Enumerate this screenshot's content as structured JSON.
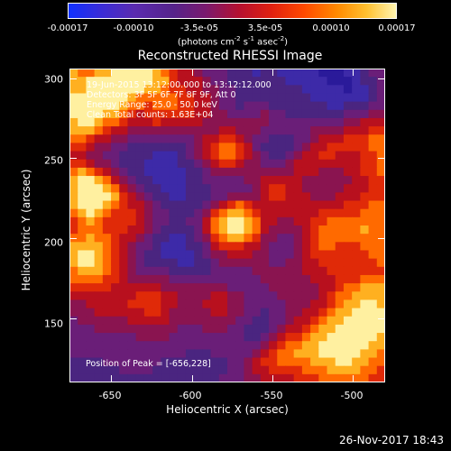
{
  "colorbar": {
    "ticks": [
      "-0.00017",
      "-0.00010",
      "-3.5e-05",
      "3.5e-05",
      "0.00010",
      "0.00017"
    ],
    "units_main": "(photons cm",
    "units_exp1": "-2",
    "units_mid": " s",
    "units_exp2": "-1",
    "units_mid2": " asec",
    "units_exp3": "-2",
    "units_end": ")"
  },
  "title": "Reconstructed RHESSI Image",
  "annotations": {
    "time": "19-Jun-2015 13:12:00.000 to 13:12:12.000",
    "detectors": "Detectors: 3F 5F 6F 7F 8F 9F, Att 0",
    "energy": "Energy Range: 25.0 - 50.0 keV",
    "clean": "Clean     Total counts: 1.63E+04",
    "peak": "Position of Peak = [-656,228]"
  },
  "axes": {
    "xlabel": "Heliocentric X (arcsec)",
    "ylabel": "Heliocentric Y (arcsec)",
    "xticks": [
      "-650",
      "-600",
      "-550",
      "-500"
    ],
    "yticks": [
      "300",
      "250",
      "200",
      "150"
    ]
  },
  "timestamp": "26-Nov-2017 18:43",
  "chart_data": {
    "type": "heatmap",
    "title": "Reconstructed RHESSI Image",
    "xlabel": "Heliocentric X (arcsec)",
    "ylabel": "Heliocentric Y (arcsec)",
    "xlim": [
      -676,
      -480
    ],
    "ylim": [
      110,
      306
    ],
    "xticks": [
      -650,
      -600,
      -550,
      -500
    ],
    "yticks": [
      150,
      200,
      250,
      300
    ],
    "colorbar": {
      "min": -0.00017,
      "max": 0.00017,
      "ticks": [
        -0.00017,
        -0.0001,
        -3.5e-05,
        3.5e-05,
        0.0001,
        0.00017
      ]
    },
    "peak_position": [
      -656,
      228
    ],
    "grid_size": [
      38,
      38
    ],
    "values": [
      [
        8,
        7,
        7,
        8,
        8,
        9,
        9,
        9,
        9,
        9,
        8,
        7,
        6,
        5,
        5,
        4,
        3,
        3,
        3,
        2,
        2,
        2,
        1,
        2,
        2,
        1,
        1,
        1,
        1,
        1,
        0,
        0,
        0,
        1,
        1,
        2,
        3,
        3
      ],
      [
        8,
        8,
        9,
        9,
        9,
        9,
        9,
        9,
        9,
        9,
        8,
        8,
        6,
        5,
        5,
        5,
        4,
        3,
        3,
        2,
        2,
        2,
        2,
        2,
        2,
        2,
        1,
        1,
        1,
        1,
        1,
        0,
        0,
        0,
        1,
        2,
        2,
        3
      ],
      [
        8,
        8,
        9,
        9,
        9,
        9,
        9,
        9,
        9,
        8,
        8,
        7,
        6,
        6,
        5,
        5,
        4,
        4,
        3,
        3,
        2,
        2,
        2,
        2,
        2,
        2,
        2,
        2,
        1,
        1,
        1,
        1,
        1,
        0,
        1,
        1,
        2,
        3
      ],
      [
        9,
        9,
        9,
        9,
        9,
        9,
        9,
        8,
        7,
        7,
        7,
        7,
        7,
        6,
        6,
        5,
        5,
        4,
        3,
        3,
        2,
        2,
        2,
        2,
        2,
        2,
        2,
        2,
        2,
        1,
        1,
        1,
        1,
        1,
        1,
        1,
        2,
        3
      ],
      [
        9,
        9,
        9,
        9,
        9,
        9,
        8,
        7,
        7,
        6,
        7,
        7,
        7,
        6,
        6,
        5,
        5,
        4,
        3,
        3,
        2,
        3,
        3,
        3,
        2,
        2,
        2,
        2,
        2,
        2,
        2,
        1,
        1,
        2,
        2,
        2,
        3,
        3
      ],
      [
        9,
        9,
        9,
        9,
        8,
        8,
        7,
        6,
        5,
        6,
        6,
        6,
        6,
        6,
        6,
        5,
        5,
        4,
        4,
        3,
        3,
        3,
        3,
        4,
        3,
        3,
        2,
        2,
        2,
        2,
        2,
        2,
        2,
        3,
        3,
        3,
        4,
        4
      ],
      [
        8,
        9,
        9,
        8,
        7,
        7,
        6,
        5,
        5,
        5,
        6,
        5,
        5,
        5,
        5,
        5,
        4,
        4,
        4,
        4,
        4,
        4,
        4,
        4,
        3,
        3,
        3,
        3,
        3,
        3,
        3,
        3,
        3,
        4,
        4,
        5,
        5,
        5
      ],
      [
        8,
        8,
        8,
        7,
        6,
        5,
        5,
        4,
        4,
        4,
        4,
        4,
        4,
        4,
        4,
        4,
        4,
        4,
        5,
        5,
        4,
        4,
        4,
        3,
        3,
        3,
        3,
        3,
        3,
        4,
        4,
        4,
        4,
        5,
        5,
        5,
        6,
        6
      ],
      [
        7,
        7,
        6,
        5,
        5,
        4,
        4,
        3,
        3,
        3,
        3,
        3,
        3,
        3,
        3,
        4,
        5,
        5,
        6,
        6,
        5,
        4,
        3,
        3,
        2,
        2,
        2,
        3,
        3,
        4,
        5,
        5,
        5,
        6,
        6,
        6,
        7,
        7
      ],
      [
        6,
        6,
        5,
        4,
        4,
        3,
        3,
        2,
        2,
        2,
        2,
        2,
        2,
        2,
        3,
        4,
        5,
        6,
        7,
        7,
        6,
        5,
        3,
        2,
        2,
        2,
        2,
        3,
        4,
        5,
        5,
        6,
        6,
        6,
        6,
        6,
        7,
        7
      ],
      [
        5,
        5,
        4,
        4,
        3,
        3,
        2,
        2,
        2,
        2,
        1,
        1,
        1,
        2,
        3,
        4,
        5,
        6,
        7,
        7,
        6,
        5,
        4,
        3,
        2,
        2,
        3,
        4,
        5,
        5,
        6,
        6,
        5,
        5,
        5,
        6,
        6,
        7
      ],
      [
        6,
        6,
        5,
        4,
        4,
        3,
        2,
        2,
        2,
        1,
        1,
        1,
        1,
        2,
        2,
        3,
        4,
        5,
        6,
        6,
        5,
        4,
        4,
        3,
        3,
        3,
        4,
        5,
        5,
        5,
        5,
        5,
        5,
        5,
        5,
        6,
        6,
        7
      ],
      [
        7,
        8,
        7,
        6,
        5,
        4,
        3,
        2,
        2,
        1,
        1,
        1,
        1,
        1,
        2,
        2,
        3,
        4,
        4,
        4,
        4,
        4,
        4,
        4,
        4,
        4,
        4,
        5,
        5,
        5,
        4,
        4,
        4,
        5,
        5,
        6,
        6,
        7
      ],
      [
        8,
        9,
        9,
        8,
        7,
        5,
        4,
        3,
        2,
        2,
        1,
        1,
        1,
        1,
        2,
        2,
        3,
        3,
        3,
        3,
        3,
        4,
        4,
        5,
        5,
        5,
        5,
        5,
        4,
        4,
        4,
        4,
        4,
        4,
        5,
        5,
        6,
        6
      ],
      [
        8,
        9,
        9,
        9,
        8,
        7,
        5,
        4,
        3,
        2,
        2,
        1,
        1,
        1,
        2,
        2,
        2,
        3,
        3,
        3,
        3,
        3,
        4,
        5,
        6,
        6,
        5,
        5,
        4,
        4,
        4,
        4,
        4,
        5,
        5,
        5,
        6,
        6
      ],
      [
        8,
        9,
        9,
        9,
        9,
        8,
        6,
        5,
        4,
        3,
        2,
        2,
        1,
        1,
        2,
        2,
        2,
        3,
        3,
        4,
        4,
        4,
        4,
        5,
        6,
        6,
        5,
        5,
        5,
        4,
        4,
        4,
        5,
        5,
        5,
        6,
        6,
        6
      ],
      [
        8,
        9,
        9,
        9,
        8,
        7,
        6,
        5,
        5,
        4,
        3,
        2,
        2,
        2,
        2,
        2,
        3,
        4,
        5,
        6,
        7,
        6,
        5,
        5,
        5,
        5,
        5,
        5,
        5,
        5,
        5,
        5,
        5,
        6,
        6,
        6,
        7,
        7
      ],
      [
        7,
        8,
        9,
        8,
        7,
        6,
        6,
        6,
        5,
        4,
        3,
        3,
        2,
        2,
        2,
        3,
        4,
        6,
        7,
        8,
        8,
        7,
        6,
        5,
        5,
        5,
        5,
        5,
        5,
        5,
        6,
        6,
        6,
        6,
        6,
        7,
        7,
        7
      ],
      [
        6,
        7,
        8,
        7,
        6,
        6,
        6,
        6,
        5,
        4,
        3,
        3,
        2,
        2,
        3,
        3,
        5,
        7,
        8,
        9,
        9,
        8,
        7,
        5,
        5,
        4,
        4,
        5,
        5,
        6,
        6,
        7,
        7,
        7,
        7,
        7,
        7,
        7
      ],
      [
        6,
        7,
        7,
        7,
        6,
        6,
        6,
        5,
        5,
        4,
        3,
        2,
        2,
        2,
        2,
        3,
        5,
        7,
        8,
        9,
        9,
        8,
        7,
        5,
        4,
        4,
        4,
        4,
        5,
        6,
        7,
        7,
        7,
        7,
        7,
        8,
        7,
        7
      ],
      [
        7,
        7,
        8,
        7,
        7,
        6,
        5,
        5,
        4,
        3,
        2,
        2,
        1,
        1,
        2,
        3,
        4,
        6,
        7,
        8,
        8,
        7,
        6,
        4,
        4,
        3,
        3,
        4,
        5,
        6,
        7,
        7,
        7,
        7,
        7,
        7,
        7,
        7
      ],
      [
        8,
        8,
        8,
        8,
        7,
        6,
        5,
        4,
        3,
        3,
        2,
        1,
        1,
        1,
        2,
        2,
        3,
        5,
        6,
        6,
        6,
        5,
        5,
        4,
        3,
        3,
        3,
        4,
        5,
        6,
        7,
        7,
        6,
        6,
        6,
        7,
        7,
        7
      ],
      [
        8,
        9,
        9,
        8,
        7,
        6,
        5,
        4,
        3,
        2,
        2,
        1,
        1,
        1,
        1,
        2,
        3,
        4,
        4,
        5,
        5,
        5,
        4,
        4,
        3,
        3,
        3,
        4,
        5,
        6,
        6,
        6,
        6,
        6,
        6,
        6,
        7,
        7
      ],
      [
        8,
        9,
        9,
        8,
        7,
        6,
        5,
        4,
        3,
        2,
        2,
        2,
        2,
        1,
        1,
        2,
        2,
        3,
        4,
        4,
        4,
        4,
        4,
        4,
        3,
        3,
        4,
        4,
        5,
        5,
        6,
        6,
        6,
        6,
        6,
        6,
        6,
        7
      ],
      [
        7,
        8,
        8,
        8,
        7,
        6,
        5,
        4,
        3,
        3,
        3,
        3,
        2,
        2,
        2,
        2,
        2,
        3,
        3,
        3,
        3,
        3,
        4,
        4,
        4,
        4,
        4,
        4,
        5,
        5,
        5,
        6,
        6,
        6,
        6,
        6,
        6,
        6
      ],
      [
        7,
        7,
        7,
        7,
        6,
        6,
        5,
        4,
        4,
        4,
        4,
        4,
        3,
        3,
        3,
        3,
        3,
        3,
        3,
        3,
        3,
        3,
        3,
        4,
        4,
        4,
        4,
        4,
        4,
        5,
        5,
        5,
        6,
        6,
        6,
        7,
        7,
        7
      ],
      [
        6,
        6,
        6,
        6,
        6,
        5,
        5,
        5,
        5,
        5,
        5,
        4,
        4,
        4,
        4,
        4,
        4,
        4,
        4,
        3,
        3,
        3,
        3,
        3,
        4,
        4,
        4,
        4,
        4,
        4,
        5,
        5,
        6,
        7,
        7,
        8,
        8,
        8
      ],
      [
        5,
        5,
        5,
        5,
        5,
        5,
        5,
        5,
        6,
        6,
        6,
        5,
        5,
        4,
        4,
        4,
        4,
        5,
        5,
        4,
        4,
        3,
        3,
        3,
        3,
        4,
        4,
        4,
        4,
        4,
        5,
        6,
        7,
        7,
        8,
        8,
        8,
        8
      ],
      [
        4,
        4,
        5,
        5,
        5,
        5,
        5,
        6,
        6,
        6,
        6,
        5,
        5,
        4,
        4,
        4,
        5,
        5,
        5,
        4,
        4,
        3,
        3,
        3,
        3,
        3,
        4,
        4,
        4,
        5,
        5,
        6,
        7,
        8,
        8,
        9,
        9,
        8
      ],
      [
        4,
        4,
        4,
        5,
        5,
        5,
        5,
        5,
        5,
        6,
        6,
        5,
        4,
        4,
        4,
        4,
        4,
        5,
        5,
        4,
        4,
        3,
        3,
        2,
        3,
        3,
        4,
        4,
        5,
        5,
        6,
        7,
        8,
        8,
        9,
        9,
        9,
        9
      ],
      [
        3,
        4,
        4,
        4,
        4,
        4,
        4,
        5,
        5,
        5,
        5,
        5,
        4,
        4,
        4,
        4,
        4,
        4,
        4,
        4,
        3,
        3,
        2,
        2,
        3,
        3,
        4,
        5,
        5,
        6,
        7,
        8,
        8,
        9,
        9,
        9,
        9,
        9
      ],
      [
        3,
        3,
        3,
        4,
        4,
        4,
        4,
        4,
        4,
        4,
        4,
        4,
        4,
        3,
        3,
        3,
        4,
        4,
        4,
        3,
        3,
        2,
        2,
        2,
        3,
        4,
        5,
        5,
        6,
        7,
        8,
        8,
        9,
        9,
        9,
        9,
        9,
        9
      ],
      [
        3,
        3,
        3,
        3,
        3,
        3,
        3,
        3,
        4,
        4,
        4,
        4,
        3,
        3,
        3,
        3,
        3,
        3,
        3,
        3,
        3,
        2,
        2,
        3,
        4,
        5,
        6,
        6,
        7,
        8,
        8,
        9,
        9,
        9,
        9,
        9,
        9,
        8
      ],
      [
        3,
        3,
        3,
        3,
        3,
        3,
        3,
        3,
        3,
        3,
        3,
        3,
        3,
        3,
        3,
        3,
        3,
        3,
        3,
        3,
        3,
        3,
        3,
        4,
        5,
        6,
        7,
        7,
        8,
        8,
        9,
        9,
        9,
        9,
        9,
        9,
        8,
        8
      ],
      [
        3,
        3,
        3,
        3,
        3,
        3,
        3,
        3,
        3,
        3,
        3,
        3,
        3,
        3,
        2,
        2,
        2,
        3,
        3,
        3,
        3,
        3,
        4,
        5,
        6,
        7,
        7,
        8,
        8,
        8,
        9,
        9,
        9,
        9,
        9,
        8,
        8,
        7
      ],
      [
        2,
        2,
        2,
        2,
        3,
        3,
        3,
        3,
        3,
        3,
        3,
        2,
        2,
        2,
        2,
        2,
        2,
        2,
        2,
        3,
        3,
        4,
        5,
        6,
        6,
        7,
        7,
        7,
        7,
        8,
        8,
        8,
        9,
        9,
        8,
        8,
        7,
        7
      ],
      [
        2,
        2,
        2,
        2,
        2,
        2,
        3,
        3,
        3,
        3,
        2,
        2,
        2,
        2,
        2,
        2,
        2,
        2,
        2,
        3,
        3,
        4,
        5,
        5,
        6,
        6,
        6,
        6,
        7,
        7,
        7,
        8,
        8,
        8,
        8,
        7,
        7,
        6
      ],
      [
        2,
        2,
        2,
        2,
        2,
        2,
        2,
        2,
        2,
        2,
        2,
        2,
        2,
        2,
        2,
        2,
        2,
        2,
        3,
        3,
        3,
        4,
        4,
        5,
        5,
        5,
        5,
        6,
        6,
        6,
        7,
        7,
        7,
        7,
        7,
        7,
        6,
        6
      ]
    ],
    "value_scale": "0 = -0.00017, 9 = 0.00017 (relative intensity bins)"
  }
}
